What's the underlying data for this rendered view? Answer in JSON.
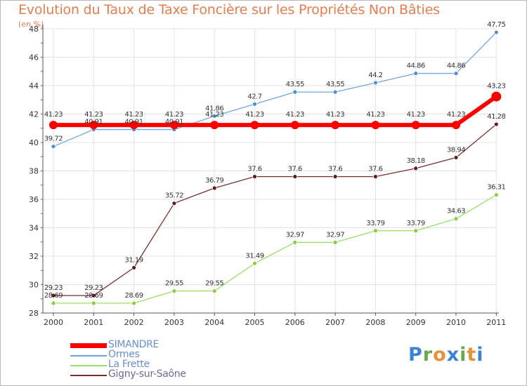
{
  "chart_data": {
    "type": "line",
    "title": "Evolution du Taux de Taxe Foncière sur les Propriétés Non Bâties",
    "subtitle": "(en %)",
    "categories": [
      "2000",
      "2001",
      "2002",
      "2003",
      "2004",
      "2005",
      "2006",
      "2007",
      "2008",
      "2009",
      "2010",
      "2011"
    ],
    "ylim": [
      28,
      48
    ],
    "yticks": [
      "28",
      "30",
      "32",
      "34",
      "36",
      "38",
      "40",
      "42",
      "44",
      "46",
      "48"
    ],
    "grid": true,
    "legend_position": "bottom-left",
    "series": [
      {
        "name": "SIMANDRE",
        "color": "#ff0000",
        "values": [
          41.23,
          41.23,
          41.23,
          41.23,
          41.23,
          41.23,
          41.23,
          41.23,
          41.23,
          41.23,
          41.23,
          43.23
        ],
        "labels": [
          "41.23",
          "41.23",
          "41.23",
          "41.23",
          "41.23",
          "41.23",
          "41.23",
          "41.23",
          "41.23",
          "41.23",
          "41.23",
          "43.23"
        ]
      },
      {
        "name": "Ormes",
        "color": "#6fa8dc",
        "values": [
          39.72,
          40.91,
          40.91,
          40.91,
          41.86,
          42.7,
          43.55,
          43.55,
          44.2,
          44.86,
          44.86,
          47.75
        ],
        "labels": [
          "39.72",
          "40.91",
          "40.91",
          "40.91",
          "41.86",
          "42.7",
          "43.55",
          "43.55",
          "44.2",
          "44.86",
          "44.86",
          "47.75"
        ]
      },
      {
        "name": "La Frette",
        "color": "#99dd66",
        "values": [
          28.69,
          28.69,
          28.69,
          29.55,
          29.55,
          31.49,
          32.97,
          32.97,
          33.79,
          33.79,
          34.63,
          36.31
        ],
        "labels": [
          "28.69",
          "28.69",
          "28.69",
          "29.55",
          "29.55",
          "31.49",
          "32.97",
          "32.97",
          "33.79",
          "33.79",
          "34.63",
          "36.31"
        ]
      },
      {
        "name": "Gigny-sur-Saône",
        "color": "#7a2e2e",
        "values": [
          29.23,
          29.23,
          31.19,
          35.72,
          36.79,
          37.6,
          37.6,
          37.6,
          37.6,
          38.18,
          38.94,
          41.28
        ],
        "labels": [
          "29.23",
          "29.23",
          "31.19",
          "35.72",
          "36.79",
          "37.6",
          "37.6",
          "37.6",
          "37.6",
          "38.18",
          "38.94",
          "41.28"
        ]
      }
    ]
  },
  "logo": {
    "letters": [
      "P",
      "r",
      "o",
      "x",
      "i",
      "t",
      "i"
    ],
    "colors": [
      "#3b82d6",
      "#6aa84f",
      "#e69138",
      "#3b82d6",
      "#6aa84f",
      "#e69138",
      "#3b82d6"
    ]
  }
}
